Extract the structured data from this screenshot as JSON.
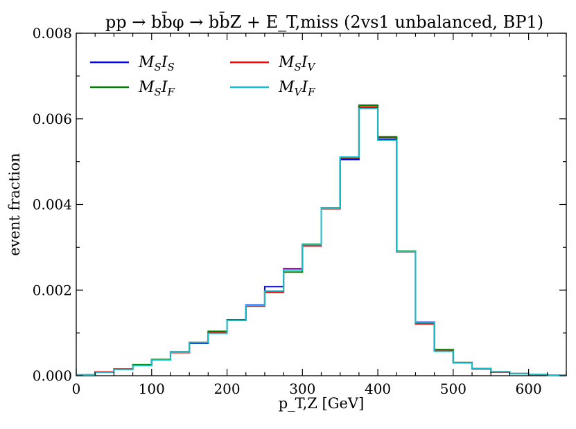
{
  "chart_data": {
    "type": "line",
    "drawstyle": "steps",
    "title": "pp → bb̄φ → bb̄Z + E_T,miss (2vs1 unbalanced, BP1)",
    "xlabel": "p_T,Z [GeV]",
    "ylabel": "event fraction",
    "xlim": [
      0,
      650
    ],
    "ylim": [
      0,
      0.008
    ],
    "xticks": [
      0,
      100,
      200,
      300,
      400,
      500,
      600
    ],
    "xtick_labels": [
      "0",
      "100",
      "200",
      "300",
      "400",
      "500",
      "600"
    ],
    "yticks": [
      0,
      0.002,
      0.004,
      0.006,
      0.008
    ],
    "ytick_labels": [
      "0.000",
      "0.002",
      "0.004",
      "0.006",
      "0.008"
    ],
    "legend_position": "top-left",
    "bin_edges": [
      0,
      25,
      50,
      75,
      100,
      125,
      150,
      175,
      200,
      225,
      250,
      275,
      300,
      325,
      350,
      375,
      400,
      425,
      450,
      475,
      500,
      525,
      550,
      575,
      600,
      625,
      650
    ],
    "series": [
      {
        "name": "M_S I_S",
        "label_main": "M",
        "label_sub1": "S",
        "label_main2": "I",
        "label_sub2": "S",
        "color": "#0000ff",
        "values": [
          2e-05,
          8e-05,
          0.00015,
          0.00024,
          0.00037,
          0.00055,
          0.00076,
          0.001,
          0.0013,
          0.00165,
          0.00208,
          0.0025,
          0.00305,
          0.00392,
          0.00505,
          0.00625,
          0.00552,
          0.0029,
          0.00125,
          0.00058,
          0.0003,
          0.00016,
          9e-05,
          5e-05,
          3e-05,
          1e-05
        ]
      },
      {
        "name": "M_S I_V",
        "label_main": "M",
        "label_sub1": "S",
        "label_main2": "I",
        "label_sub2": "V",
        "color": "#ff0000",
        "values": [
          2e-05,
          9e-05,
          0.00016,
          0.00025,
          0.00038,
          0.00054,
          0.00078,
          0.00101,
          0.00131,
          0.00162,
          0.00195,
          0.00248,
          0.00303,
          0.0039,
          0.00508,
          0.00628,
          0.00556,
          0.00289,
          0.00121,
          0.00059,
          0.00031,
          0.00016,
          8e-05,
          5e-05,
          3e-05,
          1e-05
        ]
      },
      {
        "name": "M_S I_F",
        "label_main": "M",
        "label_sub1": "S",
        "label_main2": "I",
        "label_sub2": "F",
        "color": "#008000",
        "values": [
          2e-05,
          8e-05,
          0.00015,
          0.00026,
          0.00038,
          0.00056,
          0.00077,
          0.00104,
          0.0013,
          0.00164,
          0.00198,
          0.00242,
          0.00307,
          0.00391,
          0.0051,
          0.00632,
          0.00558,
          0.00291,
          0.00123,
          0.00061,
          0.00031,
          0.00016,
          9e-05,
          5e-05,
          3e-05,
          1e-05
        ]
      },
      {
        "name": "M_V I_F",
        "label_main": "M",
        "label_sub1": "V",
        "label_main2": "I",
        "label_sub2": "F",
        "color": "#17becf",
        "values": [
          2e-05,
          8e-05,
          0.00015,
          0.00024,
          0.00037,
          0.00055,
          0.00077,
          0.00099,
          0.00129,
          0.00164,
          0.00198,
          0.00247,
          0.00306,
          0.00391,
          0.00511,
          0.00624,
          0.0055,
          0.0029,
          0.00124,
          0.00057,
          0.0003,
          0.00017,
          9e-05,
          5e-05,
          3e-05,
          1e-05
        ]
      }
    ]
  }
}
